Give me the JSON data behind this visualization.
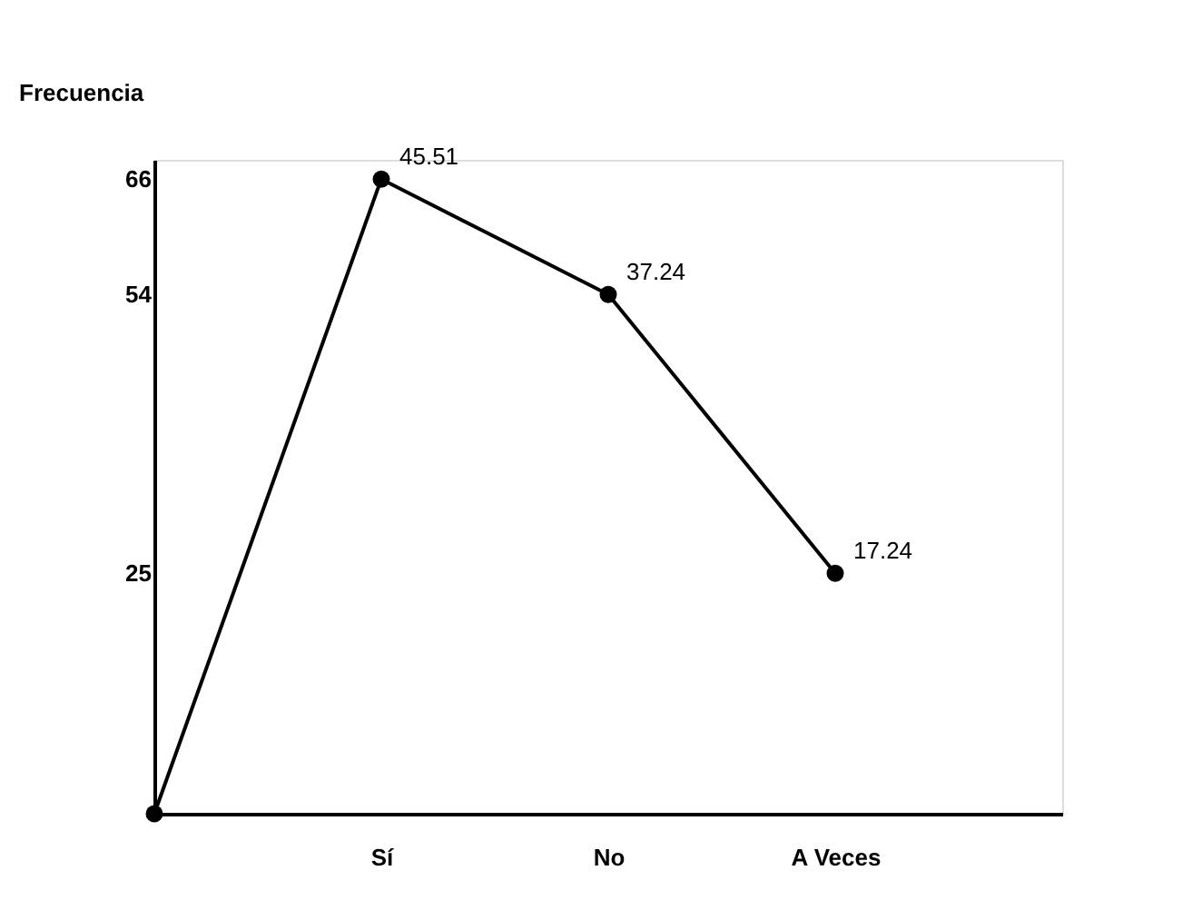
{
  "chart_data": {
    "type": "line",
    "ylabel": "Frecuencia",
    "categories": [
      null,
      "Sí",
      "No",
      "A Veces"
    ],
    "series": [
      {
        "color": "#000000",
        "values": [
          0,
          66,
          54,
          25
        ]
      }
    ],
    "annotations": [
      {
        "text": "45.51",
        "x": "Sí",
        "y": 66
      },
      {
        "text": "37.24",
        "x": "No",
        "y": 54
      },
      {
        "text": "17.24",
        "x": "A Veces",
        "y": 25
      }
    ],
    "marker": "circle",
    "ylim": [
      0,
      68
    ],
    "yticks": [
      25,
      54,
      66
    ],
    "grid": false
  }
}
